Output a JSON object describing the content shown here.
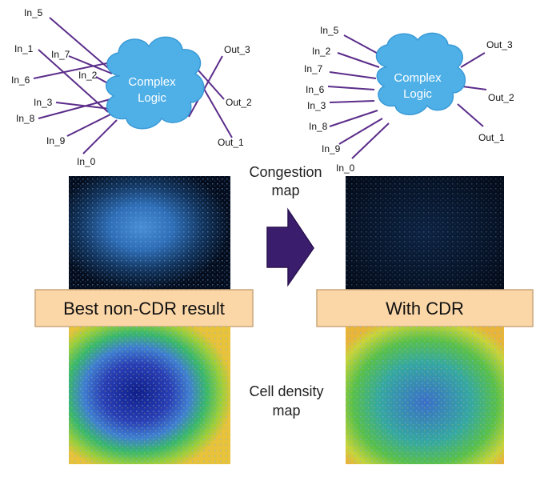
{
  "left_diagram": {
    "cloud_label_line1": "Complex",
    "cloud_label_line2": "Logic",
    "inputs": [
      "In_5",
      "In_1",
      "In_7",
      "In_6",
      "In_2",
      "In_3",
      "In_8",
      "In_9",
      "In_0"
    ],
    "outputs": [
      "Out_3",
      "Out_2",
      "Out_1"
    ]
  },
  "right_diagram": {
    "cloud_label_line1": "Complex",
    "cloud_label_line2": "Logic",
    "inputs": [
      "In_5",
      "In_2",
      "In_7",
      "In_6",
      "In_3",
      "In_8",
      "In_9",
      "In_0"
    ],
    "outputs": [
      "Out_3",
      "Out_2",
      "Out_1"
    ]
  },
  "captions": {
    "congestion_line1": "Congestion",
    "congestion_line2": "map",
    "density_line1": "Cell density",
    "density_line2": "map"
  },
  "banners": {
    "left": "Best non-CDR result",
    "right": "With CDR"
  },
  "colors": {
    "wire": "#5b2d8a",
    "cloud": "#4fb0e8",
    "arrow": "#3b1d6e",
    "banner_fill": "#fbd7a8",
    "banner_border": "#c9a57a"
  }
}
